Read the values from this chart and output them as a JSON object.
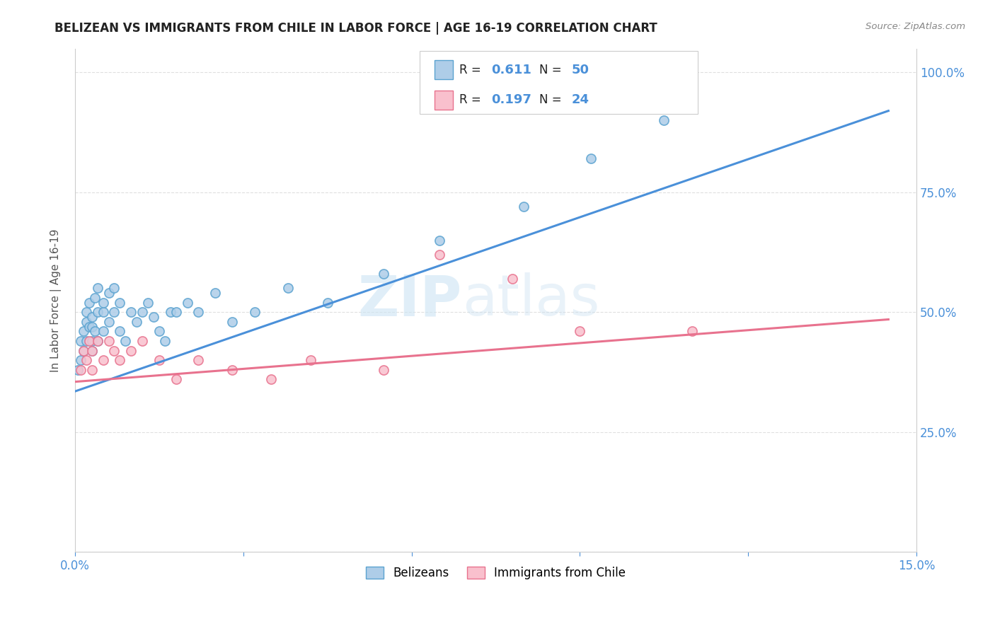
{
  "title": "BELIZEAN VS IMMIGRANTS FROM CHILE IN LABOR FORCE | AGE 16-19 CORRELATION CHART",
  "source": "Source: ZipAtlas.com",
  "ylabel": "In Labor Force | Age 16-19",
  "xlim": [
    0.0,
    0.15
  ],
  "ylim": [
    0.0,
    1.05
  ],
  "blue_scatter_x": [
    0.0005,
    0.001,
    0.001,
    0.0015,
    0.0015,
    0.002,
    0.002,
    0.002,
    0.0025,
    0.0025,
    0.003,
    0.003,
    0.003,
    0.003,
    0.0035,
    0.0035,
    0.004,
    0.004,
    0.004,
    0.005,
    0.005,
    0.005,
    0.006,
    0.006,
    0.007,
    0.007,
    0.008,
    0.008,
    0.009,
    0.01,
    0.011,
    0.012,
    0.013,
    0.014,
    0.015,
    0.016,
    0.017,
    0.018,
    0.02,
    0.022,
    0.025,
    0.028,
    0.032,
    0.038,
    0.045,
    0.055,
    0.065,
    0.08,
    0.092,
    0.105
  ],
  "blue_scatter_y": [
    0.38,
    0.44,
    0.4,
    0.46,
    0.42,
    0.48,
    0.44,
    0.5,
    0.47,
    0.52,
    0.44,
    0.49,
    0.42,
    0.47,
    0.53,
    0.46,
    0.5,
    0.55,
    0.44,
    0.5,
    0.46,
    0.52,
    0.54,
    0.48,
    0.55,
    0.5,
    0.52,
    0.46,
    0.44,
    0.5,
    0.48,
    0.5,
    0.52,
    0.49,
    0.46,
    0.44,
    0.5,
    0.5,
    0.52,
    0.5,
    0.54,
    0.48,
    0.5,
    0.55,
    0.52,
    0.58,
    0.65,
    0.72,
    0.82,
    0.9
  ],
  "pink_scatter_x": [
    0.001,
    0.0015,
    0.002,
    0.0025,
    0.003,
    0.003,
    0.004,
    0.005,
    0.006,
    0.007,
    0.008,
    0.01,
    0.012,
    0.015,
    0.018,
    0.022,
    0.028,
    0.035,
    0.042,
    0.055,
    0.065,
    0.078,
    0.09,
    0.11
  ],
  "pink_scatter_y": [
    0.38,
    0.42,
    0.4,
    0.44,
    0.42,
    0.38,
    0.44,
    0.4,
    0.44,
    0.42,
    0.4,
    0.42,
    0.44,
    0.4,
    0.36,
    0.4,
    0.38,
    0.36,
    0.4,
    0.38,
    0.62,
    0.57,
    0.46,
    0.46
  ],
  "blue_line_x": [
    0.0,
    0.145
  ],
  "blue_line_y": [
    0.335,
    0.92
  ],
  "pink_line_x": [
    0.0,
    0.145
  ],
  "pink_line_y": [
    0.355,
    0.485
  ],
  "blue_color": "#aecde8",
  "blue_edge_color": "#5ba3d0",
  "pink_color": "#f9c0cd",
  "pink_edge_color": "#e8728e",
  "blue_line_color": "#4a90d9",
  "pink_line_color": "#e8728e",
  "R_blue": "0.611",
  "N_blue": "50",
  "R_pink": "0.197",
  "N_pink": "24",
  "legend_label_blue": "Belizeans",
  "legend_label_pink": "Immigrants from Chile",
  "watermark_zip": "ZIP",
  "watermark_atlas": "atlas",
  "background_color": "#ffffff",
  "grid_color": "#e0e0e0",
  "tick_color": "#4a90d9",
  "label_color": "#555555"
}
